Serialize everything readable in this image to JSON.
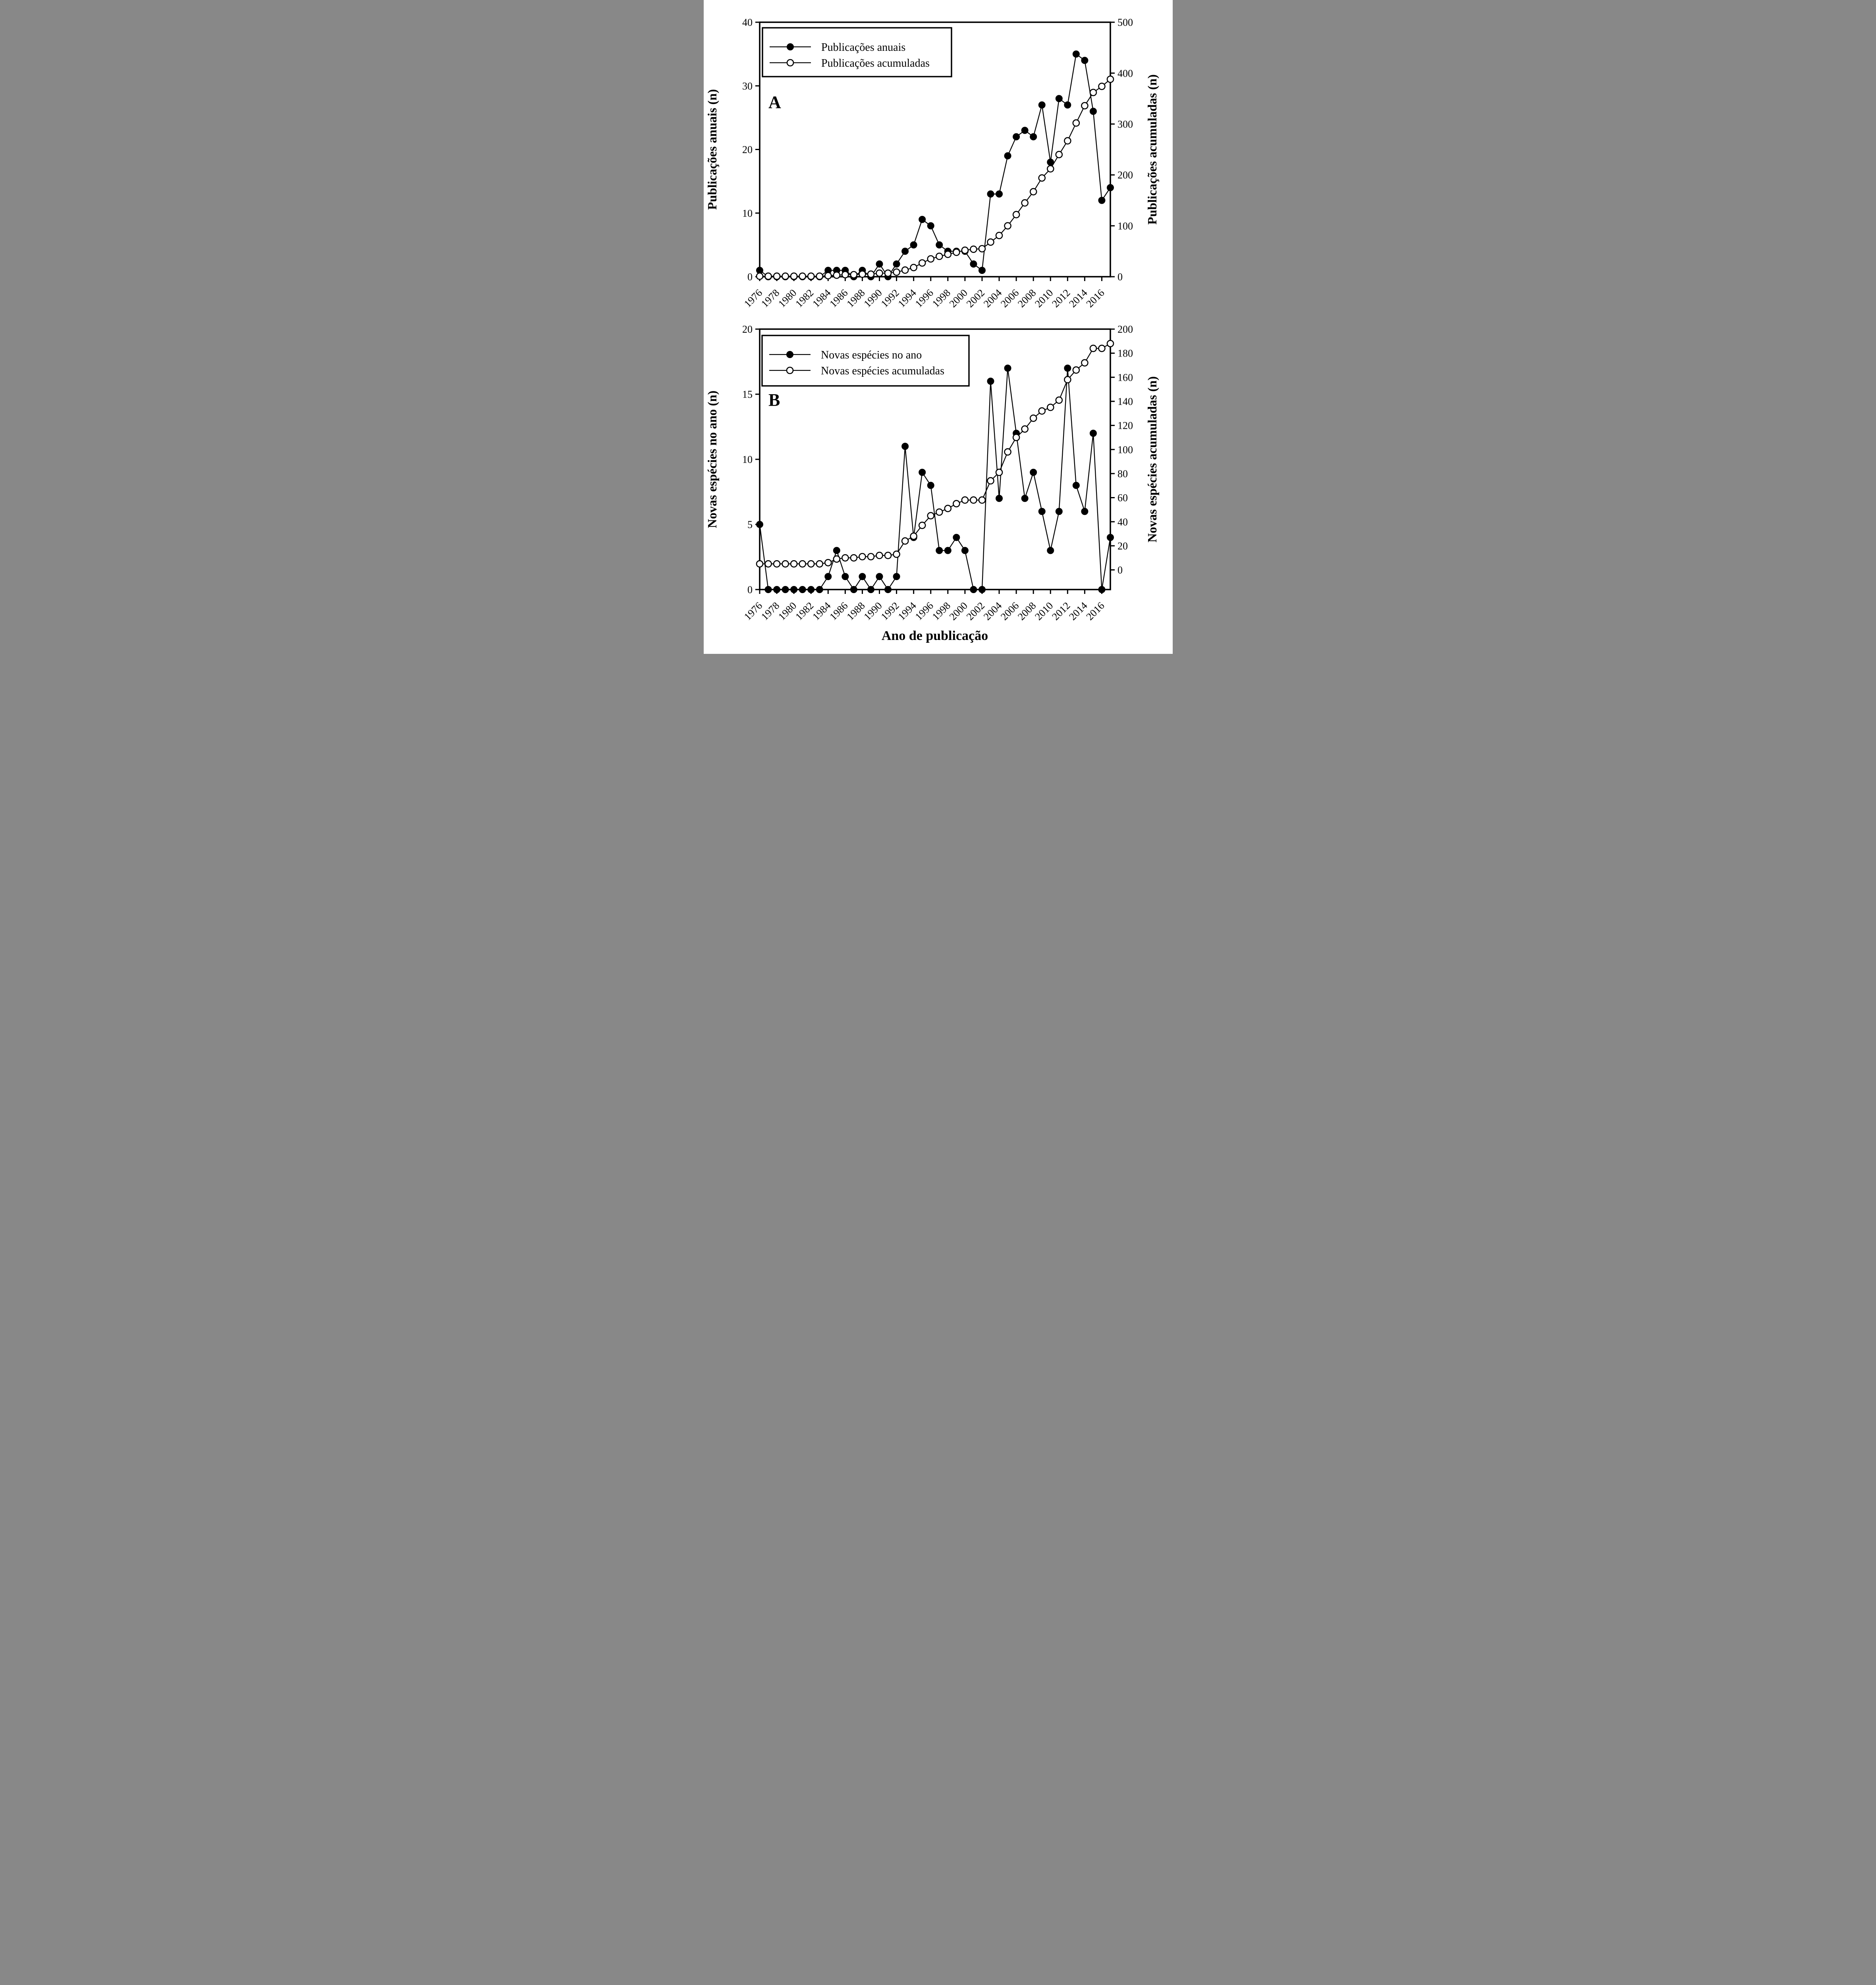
{
  "figure": {
    "x_axis_title": "Ano de publicação",
    "background": "#ffffff",
    "foreground": "#000000",
    "x_tick_years": [
      1976,
      1978,
      1980,
      1982,
      1984,
      1986,
      1988,
      1990,
      1992,
      1994,
      1996,
      1998,
      2000,
      2002,
      2004,
      2006,
      2008,
      2010,
      2012,
      2014,
      2016
    ]
  },
  "chart_data": [
    {
      "type": "line",
      "panel_letter": "A",
      "x_years": [
        1976,
        1977,
        1978,
        1979,
        1980,
        1981,
        1982,
        1983,
        1984,
        1985,
        1986,
        1987,
        1988,
        1989,
        1990,
        1991,
        1992,
        1993,
        1994,
        1995,
        1996,
        1997,
        1998,
        1999,
        2000,
        2001,
        2002,
        2003,
        2004,
        2005,
        2006,
        2007,
        2008,
        2009,
        2010,
        2011,
        2012,
        2013,
        2014,
        2015,
        2016,
        2017
      ],
      "x_range": [
        1976,
        2017
      ],
      "left_axis": {
        "title": "Publicações anuais (n)",
        "min": 0,
        "max": 40,
        "ticks": [
          0,
          10,
          20,
          30,
          40
        ]
      },
      "right_axis": {
        "title": "Publicações acumuladas (n)",
        "min": 0,
        "max": 500,
        "ticks": [
          0,
          100,
          200,
          300,
          400,
          500
        ],
        "zero_at_left_units": 0,
        "top_at_left_units": 40
      },
      "legend": [
        "Publicações anuais",
        "Publicações acumuladas"
      ],
      "series": [
        {
          "name": "Publicações anuais",
          "marker": "filled",
          "axis": "left",
          "values": [
            1,
            0,
            0,
            0,
            0,
            0,
            0,
            0,
            1,
            1,
            1,
            0,
            1,
            0,
            2,
            0,
            2,
            4,
            5,
            9,
            8,
            5,
            4,
            4,
            4,
            2,
            1,
            13,
            13,
            19,
            22,
            23,
            22,
            27,
            18,
            28,
            27,
            35,
            34,
            26,
            12,
            14
          ]
        },
        {
          "name": "Publicações acumuladas",
          "marker": "open",
          "axis": "right",
          "values": [
            1,
            1,
            1,
            1,
            1,
            1,
            1,
            1,
            2,
            3,
            4,
            4,
            5,
            5,
            7,
            7,
            9,
            13,
            18,
            27,
            35,
            40,
            44,
            48,
            52,
            54,
            55,
            68,
            81,
            100,
            122,
            145,
            167,
            194,
            212,
            240,
            267,
            302,
            336,
            362,
            374,
            388
          ]
        }
      ]
    },
    {
      "type": "line",
      "panel_letter": "B",
      "x_years": [
        1976,
        1977,
        1978,
        1979,
        1980,
        1981,
        1982,
        1983,
        1984,
        1985,
        1986,
        1987,
        1988,
        1989,
        1990,
        1991,
        1992,
        1993,
        1994,
        1995,
        1996,
        1997,
        1998,
        1999,
        2000,
        2001,
        2002,
        2003,
        2004,
        2005,
        2006,
        2007,
        2008,
        2009,
        2010,
        2011,
        2012,
        2013,
        2014,
        2015,
        2016,
        2017
      ],
      "x_range": [
        1976,
        2017
      ],
      "left_axis": {
        "title": "Novas espécies no ano (n)",
        "min": 0,
        "max": 20,
        "ticks": [
          0,
          5,
          10,
          15,
          20
        ]
      },
      "right_axis": {
        "title": "Novas espécies acumuladas (n)",
        "min": 0,
        "max": 200,
        "ticks": [
          0,
          20,
          40,
          60,
          80,
          100,
          120,
          140,
          160,
          180,
          200
        ],
        "zero_at_left_units": 1.51,
        "top_at_left_units": 20
      },
      "legend": [
        "Novas espécies no ano",
        "Novas espécies acumuladas"
      ],
      "series": [
        {
          "name": "Novas espécies no ano",
          "marker": "filled",
          "axis": "left",
          "values": [
            5,
            0,
            0,
            0,
            0,
            0,
            0,
            0,
            1,
            3,
            1,
            0,
            1,
            0,
            1,
            0,
            1,
            11,
            4,
            9,
            8,
            3,
            3,
            4,
            3,
            0,
            0,
            16,
            7,
            17,
            12,
            7,
            9,
            6,
            3,
            6,
            17,
            8,
            6,
            12,
            0,
            4
          ]
        },
        {
          "name": "Novas espécies acumuladas",
          "marker": "open",
          "axis": "right",
          "values": [
            5,
            5,
            5,
            5,
            5,
            5,
            5,
            5,
            6,
            9,
            10,
            10,
            11,
            11,
            12,
            12,
            13,
            24,
            28,
            37,
            45,
            48,
            51,
            55,
            58,
            58,
            58,
            74,
            81,
            98,
            110,
            117,
            126,
            132,
            135,
            141,
            158,
            166,
            172,
            184,
            184,
            188
          ]
        }
      ]
    }
  ]
}
